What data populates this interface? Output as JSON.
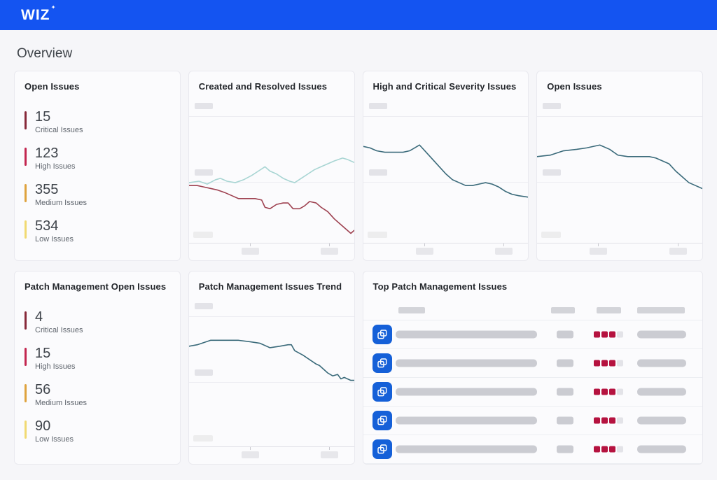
{
  "app": {
    "logo_text": "WIZ",
    "logo_sparkle": "✦"
  },
  "page": {
    "title": "Overview"
  },
  "colors": {
    "header_blue": "#1454F1",
    "severity": {
      "critical": "#87293A",
      "high": "#C32650",
      "medium": "#DFA33E",
      "low": "#F1DA72"
    },
    "severity_square_filled": "#B5123F",
    "severity_square_empty": "#E3E3E8",
    "row_icon_blue": "#1560D8",
    "line_created": "#A8D5D3",
    "line_resolved": "#9E4150",
    "line_trend_dark": "#3A6A7A"
  },
  "cards": {
    "open_issues": {
      "title": "Open Issues",
      "metrics": [
        {
          "value": "15",
          "label": "Critical Issues",
          "severity": "critical"
        },
        {
          "value": "123",
          "label": "High Issues",
          "severity": "high"
        },
        {
          "value": "355",
          "label": "Medium Issues",
          "severity": "medium"
        },
        {
          "value": "534",
          "label": "Low Issues",
          "severity": "low"
        }
      ]
    },
    "created_resolved": {
      "title": "Created and Resolved Issues",
      "chart_data": {
        "type": "line",
        "title": "Created and Resolved Issues",
        "axis_labels": "redacted skeleton placeholders (no visible tick text)",
        "x_range_normalized": [
          0,
          100
        ],
        "y_range_normalized": [
          0,
          100
        ],
        "series": [
          {
            "name": "created",
            "color": "#A8D5D3",
            "points": [
              [
                0,
                58
              ],
              [
                6,
                57
              ],
              [
                11,
                59
              ],
              [
                16,
                56
              ],
              [
                19,
                55
              ],
              [
                23,
                57
              ],
              [
                28,
                58
              ],
              [
                33,
                56
              ],
              [
                38,
                53
              ],
              [
                42,
                50
              ],
              [
                46,
                47
              ],
              [
                49,
                50
              ],
              [
                53,
                52
              ],
              [
                57,
                55
              ],
              [
                61,
                57
              ],
              [
                64,
                58
              ],
              [
                68,
                55
              ],
              [
                72,
                52
              ],
              [
                76,
                49
              ],
              [
                80,
                47
              ],
              [
                84,
                45
              ],
              [
                88,
                43
              ],
              [
                93,
                41
              ],
              [
                96,
                42
              ],
              [
                100,
                44
              ]
            ]
          },
          {
            "name": "resolved",
            "color": "#9E4150",
            "points": [
              [
                0,
                60
              ],
              [
                5,
                60
              ],
              [
                9,
                61
              ],
              [
                13,
                62
              ],
              [
                17,
                63
              ],
              [
                22,
                65
              ],
              [
                26,
                67
              ],
              [
                30,
                69
              ],
              [
                35,
                69
              ],
              [
                40,
                69
              ],
              [
                44,
                70
              ],
              [
                46,
                75
              ],
              [
                49,
                76
              ],
              [
                53,
                73
              ],
              [
                57,
                72
              ],
              [
                60,
                72
              ],
              [
                63,
                76
              ],
              [
                67,
                76
              ],
              [
                70,
                74
              ],
              [
                73,
                71
              ],
              [
                77,
                72
              ],
              [
                80,
                75
              ],
              [
                84,
                78
              ],
              [
                88,
                83
              ],
              [
                92,
                87
              ],
              [
                96,
                91
              ],
              [
                98,
                93
              ],
              [
                100,
                91
              ]
            ]
          }
        ]
      }
    },
    "high_critical": {
      "title": "High and Critical Severity Issues",
      "chart_data": {
        "type": "line",
        "title": "High and Critical Severity Issues",
        "axis_labels": "redacted skeleton placeholders (no visible tick text)",
        "series": [
          {
            "name": "high-and-critical",
            "color": "#3A6A7A",
            "points": [
              [
                0,
                33
              ],
              [
                4,
                34
              ],
              [
                8,
                36
              ],
              [
                13,
                37
              ],
              [
                18,
                37
              ],
              [
                24,
                37
              ],
              [
                28,
                36
              ],
              [
                31,
                34
              ],
              [
                34,
                32
              ],
              [
                38,
                37
              ],
              [
                42,
                42
              ],
              [
                46,
                47
              ],
              [
                50,
                52
              ],
              [
                54,
                56
              ],
              [
                58,
                58
              ],
              [
                62,
                60
              ],
              [
                66,
                60
              ],
              [
                70,
                59
              ],
              [
                74,
                58
              ],
              [
                78,
                59
              ],
              [
                82,
                61
              ],
              [
                86,
                64
              ],
              [
                90,
                66
              ],
              [
                94,
                67
              ],
              [
                100,
                68
              ]
            ]
          }
        ]
      }
    },
    "open_issues_trend": {
      "title": "Open Issues",
      "chart_data": {
        "type": "line",
        "title": "Open Issues",
        "axis_labels": "redacted skeleton placeholders (no visible tick text)",
        "series": [
          {
            "name": "open-issues",
            "color": "#3A6A7A",
            "points": [
              [
                0,
                40
              ],
              [
                8,
                39
              ],
              [
                16,
                36
              ],
              [
                24,
                35
              ],
              [
                30,
                34
              ],
              [
                38,
                32
              ],
              [
                44,
                35
              ],
              [
                49,
                39
              ],
              [
                55,
                40
              ],
              [
                62,
                40
              ],
              [
                68,
                40
              ],
              [
                72,
                41
              ],
              [
                76,
                43
              ],
              [
                80,
                45
              ],
              [
                84,
                50
              ],
              [
                88,
                54
              ],
              [
                92,
                58
              ],
              [
                96,
                60
              ],
              [
                100,
                62
              ]
            ]
          }
        ]
      }
    },
    "patch_open": {
      "title": "Patch Management Open Issues",
      "metrics": [
        {
          "value": "4",
          "label": "Critical Issues",
          "severity": "critical"
        },
        {
          "value": "15",
          "label": "High Issues",
          "severity": "high"
        },
        {
          "value": "56",
          "label": "Medium Issues",
          "severity": "medium"
        },
        {
          "value": "90",
          "label": "Low Issues",
          "severity": "low"
        }
      ]
    },
    "patch_trend": {
      "title": "Patch Management Issues Trend",
      "chart_data": {
        "type": "line",
        "title": "Patch Management Issues Trend",
        "axis_labels": "redacted skeleton placeholders (no visible tick text)",
        "series": [
          {
            "name": "patch-issues",
            "color": "#3A6A7A",
            "points": [
              [
                0,
                32
              ],
              [
                5,
                31
              ],
              [
                13,
                28
              ],
              [
                21,
                28
              ],
              [
                30,
                28
              ],
              [
                37,
                29
              ],
              [
                43,
                30
              ],
              [
                49,
                33
              ],
              [
                55,
                32
              ],
              [
                60,
                31
              ],
              [
                62,
                31
              ],
              [
                64,
                35
              ],
              [
                69,
                38
              ],
              [
                73,
                41
              ],
              [
                77,
                44
              ],
              [
                79,
                45
              ],
              [
                81,
                47
              ],
              [
                84,
                50
              ],
              [
                87,
                52
              ],
              [
                90,
                51
              ],
              [
                92,
                54
              ],
              [
                94,
                53
              ],
              [
                96,
                54
              ],
              [
                98,
                55
              ],
              [
                100,
                55
              ]
            ]
          }
        ]
      }
    },
    "top_patch": {
      "title": "Top Patch Management Issues",
      "header_placeholders": 4,
      "row_count": 5,
      "severity_filled": 3,
      "severity_total": 4
    }
  }
}
